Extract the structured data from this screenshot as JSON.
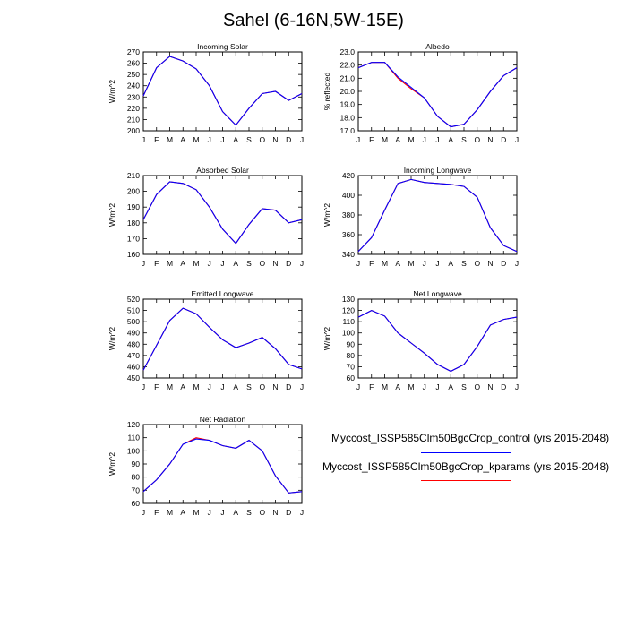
{
  "title": "Sahel (6-16N,5W-15E)",
  "colors": {
    "control": "#0000ff",
    "kparams": "#ff0000",
    "axis": "#000000"
  },
  "legend": [
    {
      "name": "Myccost_ISSP585Clm50BgcCrop_control (yrs 2015-2048)",
      "color": "#0000ff"
    },
    {
      "name": "Myccost_ISSP585Clm50BgcCrop_kparams (yrs 2015-2048)",
      "color": "#ff0000"
    }
  ],
  "chart_data": [
    {
      "type": "line",
      "title": "Incoming Solar",
      "ylabel": "W/m^2",
      "categories": [
        "J",
        "F",
        "M",
        "A",
        "M",
        "J",
        "J",
        "A",
        "S",
        "O",
        "N",
        "D",
        "J"
      ],
      "ylim": [
        200,
        270
      ],
      "yticks": [
        "200",
        "210",
        "220",
        "230",
        "240",
        "250",
        "260",
        "270"
      ],
      "series": [
        {
          "name": "control",
          "values": [
            231,
            256,
            266,
            262,
            255,
            240,
            217,
            205,
            220,
            233,
            235,
            227,
            233
          ]
        },
        {
          "name": "kparams",
          "values": [
            231,
            256,
            266,
            262,
            255,
            240,
            217,
            205,
            220,
            233,
            235,
            227,
            233
          ]
        }
      ]
    },
    {
      "type": "line",
      "title": "Albedo",
      "ylabel": "% reflected",
      "categories": [
        "J",
        "F",
        "M",
        "A",
        "M",
        "J",
        "J",
        "A",
        "S",
        "O",
        "N",
        "D",
        "J"
      ],
      "ylim": [
        17.0,
        23.0
      ],
      "yticks": [
        "17.0",
        "18.0",
        "19.0",
        "20.0",
        "21.0",
        "22.0",
        "23.0"
      ],
      "series": [
        {
          "name": "control",
          "values": [
            21.8,
            22.2,
            22.2,
            21.1,
            20.3,
            19.5,
            18.1,
            17.3,
            17.5,
            18.6,
            20.0,
            21.2,
            21.8
          ]
        },
        {
          "name": "kparams",
          "values": [
            21.8,
            22.2,
            22.2,
            21.0,
            20.2,
            19.5,
            18.1,
            17.3,
            17.5,
            18.6,
            20.0,
            21.2,
            21.8
          ]
        }
      ]
    },
    {
      "type": "line",
      "title": "Absorbed Solar",
      "ylabel": "W/m^2",
      "categories": [
        "J",
        "F",
        "M",
        "A",
        "M",
        "J",
        "J",
        "A",
        "S",
        "O",
        "N",
        "D",
        "J"
      ],
      "ylim": [
        160,
        210
      ],
      "yticks": [
        "160",
        "170",
        "180",
        "190",
        "200",
        "210"
      ],
      "series": [
        {
          "name": "control",
          "values": [
            182,
            198,
            206,
            205,
            201,
            190,
            176,
            167,
            179,
            189,
            188,
            180,
            182
          ]
        },
        {
          "name": "kparams",
          "values": [
            182,
            198,
            206,
            205,
            201,
            190,
            176,
            167,
            179,
            189,
            188,
            180,
            182
          ]
        }
      ]
    },
    {
      "type": "line",
      "title": "Incoming Longwave",
      "ylabel": "W/m^2",
      "categories": [
        "J",
        "F",
        "M",
        "A",
        "M",
        "J",
        "J",
        "A",
        "S",
        "O",
        "N",
        "D",
        "J"
      ],
      "ylim": [
        340,
        420
      ],
      "yticks": [
        "340",
        "360",
        "380",
        "400",
        "420"
      ],
      "series": [
        {
          "name": "control",
          "values": [
            343,
            357,
            385,
            412,
            416,
            413,
            412,
            411,
            409,
            398,
            367,
            349,
            343
          ]
        },
        {
          "name": "kparams",
          "values": [
            343,
            357,
            385,
            412,
            416,
            413,
            412,
            411,
            409,
            398,
            367,
            349,
            343
          ]
        }
      ]
    },
    {
      "type": "line",
      "title": "Emitted Longwave",
      "ylabel": "W/m^2",
      "categories": [
        "J",
        "F",
        "M",
        "A",
        "M",
        "J",
        "J",
        "A",
        "S",
        "O",
        "N",
        "D",
        "J"
      ],
      "ylim": [
        450,
        520
      ],
      "yticks": [
        "450",
        "460",
        "470",
        "480",
        "490",
        "500",
        "510",
        "520"
      ],
      "series": [
        {
          "name": "control",
          "values": [
            457,
            479,
            501,
            512,
            507,
            495,
            484,
            477,
            481,
            486,
            476,
            462,
            458
          ]
        },
        {
          "name": "kparams",
          "values": [
            457,
            479,
            501,
            512,
            507,
            495,
            484,
            477,
            481,
            486,
            476,
            462,
            458
          ]
        }
      ]
    },
    {
      "type": "line",
      "title": "Net Longwave",
      "ylabel": "W/m^2",
      "categories": [
        "J",
        "F",
        "M",
        "A",
        "M",
        "J",
        "J",
        "A",
        "S",
        "O",
        "N",
        "D",
        "J"
      ],
      "ylim": [
        60,
        130
      ],
      "yticks": [
        "60",
        "70",
        "80",
        "90",
        "100",
        "110",
        "120",
        "130"
      ],
      "series": [
        {
          "name": "control",
          "values": [
            114,
            120,
            115,
            100,
            91,
            82,
            72,
            66,
            72,
            88,
            107,
            112,
            114
          ]
        },
        {
          "name": "kparams",
          "values": [
            114,
            120,
            115,
            100,
            91,
            82,
            72,
            66,
            72,
            88,
            107,
            112,
            114
          ]
        }
      ]
    },
    {
      "type": "line",
      "title": "Net Radiation",
      "ylabel": "W/m^2",
      "categories": [
        "J",
        "F",
        "M",
        "A",
        "M",
        "J",
        "J",
        "A",
        "S",
        "O",
        "N",
        "D",
        "J"
      ],
      "ylim": [
        60,
        120
      ],
      "yticks": [
        "60",
        "70",
        "80",
        "90",
        "100",
        "110",
        "120"
      ],
      "series": [
        {
          "name": "control",
          "values": [
            69,
            78,
            90,
            105,
            109,
            108,
            104,
            102,
            108,
            100,
            81,
            68,
            69
          ]
        },
        {
          "name": "kparams",
          "values": [
            69,
            78,
            90,
            105,
            110,
            108,
            104,
            102,
            108,
            100,
            81,
            68,
            69
          ]
        }
      ]
    }
  ]
}
